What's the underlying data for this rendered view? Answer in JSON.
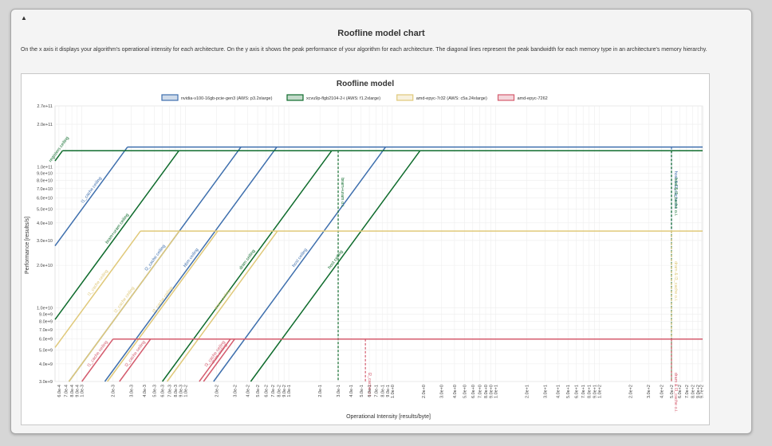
{
  "panel": {
    "title": "Roofline model chart",
    "description": "On the x axis it displays your algorithm's operational intensity for each architecture. On the y axis it shows the peak performance of your algorithm for each architecture. The diagonal lines represent the peak bandwidth for each memory type in an architecture's memory hierarchy.",
    "toggle_icon": "caret-up-icon"
  },
  "chart_data": {
    "type": "line",
    "title": "Roofline model",
    "xlabel": "Operational Intensity [results/byte]",
    "ylabel": "Performance [results/s]",
    "x_scale": "log",
    "y_scale": "log",
    "xlim": [
      0.00055,
      1000
    ],
    "ylim": [
      3000000000,
      270000000000
    ],
    "grid": true,
    "legend_position": "top",
    "x_ticks": [
      "6.0e-4",
      "7.0e-4",
      "8.0e-4",
      "9.0e-4",
      "1.0e-3",
      "2.0e-3",
      "3.0e-3",
      "4.0e-3",
      "5.0e-3",
      "6.0e-3",
      "7.0e-3",
      "8.0e-3",
      "9.0e-3",
      "1.0e-2",
      "2.0e-2",
      "3.0e-2",
      "4.0e-2",
      "5.0e-2",
      "6.0e-2",
      "7.0e-2",
      "8.0e-2",
      "9.0e-2",
      "1.0e-1",
      "2.0e-1",
      "3.0e-1",
      "4.0e-1",
      "5.0e-1",
      "6.0e-1",
      "7.0e-1",
      "8.0e-1",
      "9.0e-1",
      "1.0e+0",
      "2.0e+0",
      "3.0e+0",
      "4.0e+0",
      "5.0e+0",
      "6.0e+0",
      "7.0e+0",
      "8.0e+0",
      "9.0e+0",
      "1.0e+1",
      "2.0e+1",
      "3.0e+1",
      "4.0e+1",
      "5.0e+1",
      "6.0e+1",
      "7.0e+1",
      "8.0e+1",
      "9.0e+1",
      "1.0e+2",
      "2.0e+2",
      "3.0e+2",
      "4.0e+2",
      "5.0e+2",
      "6.0e+2",
      "7.0e+2",
      "8.0e+2",
      "9.0e+2",
      "9.7e+2"
    ],
    "y_ticks": [
      "3.0e+9",
      "4.0e+9",
      "5.0e+9",
      "6.0e+9",
      "7.0e+9",
      "8.0e+9",
      "9.0e+9",
      "1.0e+10",
      "2.0e+10",
      "3.0e+10",
      "4.0e+10",
      "5.0e+10",
      "6.0e+10",
      "7.0e+10",
      "8.0e+10",
      "9.0e+10",
      "1.0e+11",
      "2.0e+11",
      "2.7e+11"
    ],
    "series": [
      {
        "name": "nvidia-v100-16gb-pcie-gen3 (AWS: p3.2xlarge)",
        "color": "#3e6fad",
        "peak": 138000000000,
        "ceilings": [
          {
            "label": "l1_cache ceiling",
            "bandwidth": 50000000000000
          },
          {
            "label": "l2_cache ceiling",
            "bandwidth": 4000000000000
          },
          {
            "label": "hbm ceiling",
            "bandwidth": 1800000000000
          },
          {
            "label": "host ceiling",
            "bandwidth": 160000000000
          }
        ],
        "ridges": [
          {
            "label": "host & l2_cache o.i.",
            "x": 500
          }
        ]
      },
      {
        "name": "xcvu9p-flgb2104-2-i (AWS: f1.2xlarge)",
        "color": "#0e6b2c",
        "peak": 130000000000,
        "ceilings": [
          {
            "label": "registers ceiling",
            "bandwidth": 200000000000000
          },
          {
            "label": "bram+uram ceiling",
            "bandwidth": 15000000000000
          },
          {
            "label": "dram ceiling",
            "bandwidth": 500000000000
          },
          {
            "label": "host ceiling",
            "bandwidth": 70000000000
          }
        ],
        "ridges": [
          {
            "label": "bram+uram o.i.",
            "x": 0.3
          },
          {
            "label": "host & l1_cache o.i.",
            "x": 500
          }
        ]
      },
      {
        "name": "amd-epyc-7r32 (AWS: c5a.24xlarge)",
        "color": "#e0c97a",
        "peak": 35000000000,
        "ceilings": [
          {
            "label": "l1_cache ceiling",
            "bandwidth": 9500000000000
          },
          {
            "label": "l2_cache ceiling",
            "bandwidth": 4000000000000
          },
          {
            "label": "l3_cache ceiling",
            "bandwidth": 1700000000000
          },
          {
            "label": "dram ceiling",
            "bandwidth": 450000000000
          }
        ],
        "ridges": [
          {
            "label": "dram & l3_cache o.i.",
            "x": 500
          }
        ]
      },
      {
        "name": "amd-epyc-7262",
        "color": "#d45c6e",
        "peak": 6000000000,
        "ceilings": [
          {
            "label": "l1_cache ceiling",
            "bandwidth": 3000000000000
          },
          {
            "label": "l2_cache ceiling",
            "bandwidth": 1300000000000
          },
          {
            "label": "l3_cache ceiling",
            "bandwidth": 220000000000
          },
          {
            "label": "dram ceiling",
            "bandwidth": 200000000000
          }
        ],
        "ridges": [
          {
            "label": "l2_cache o.i.",
            "x": 0.55
          },
          {
            "label": "dram & l3_cache o.i.",
            "x": 500
          }
        ]
      }
    ]
  }
}
